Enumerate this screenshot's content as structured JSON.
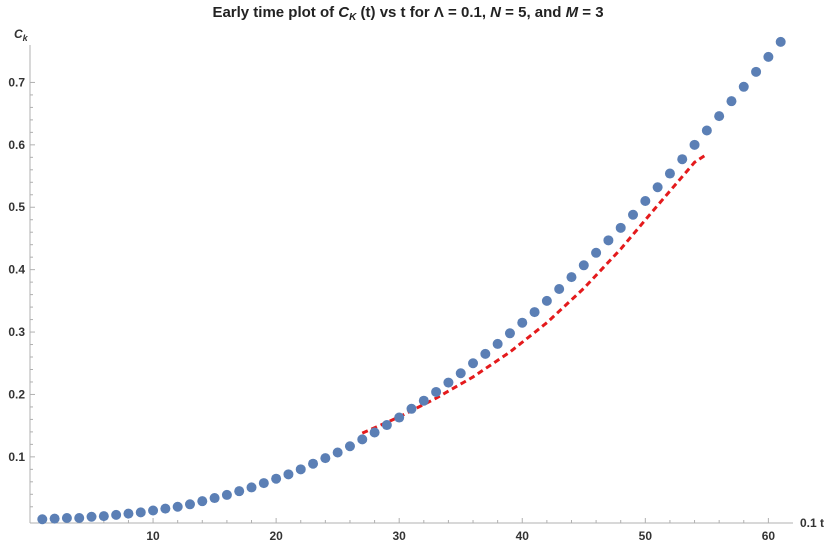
{
  "chart_data": {
    "type": "scatter",
    "title": "Early time plot of C_K (t) vs t for Λ = 0.1,  N = 5,  and M = 3",
    "title_parts": {
      "prefix": "Early time plot of ",
      "c": "C",
      "c_sub": "K",
      "mid": " (t) vs t for Λ = 0.1,  ",
      "n": "N",
      "n_rest": " = 5,  and ",
      "m": "M",
      "m_rest": " = 3"
    },
    "ylabel": "C",
    "ylabel_sub": "k",
    "xlabel": "0.1 t",
    "xlim": [
      0,
      62
    ],
    "ylim": [
      -0.006,
      0.76
    ],
    "x_ticks": [
      10,
      20,
      30,
      40,
      50,
      60
    ],
    "y_ticks": [
      0.1,
      0.2,
      0.3,
      0.4,
      0.5,
      0.6,
      0.7
    ],
    "series": [
      {
        "marker": "circle",
        "color": "#5b7fb5",
        "x": [
          1,
          2,
          3,
          4,
          5,
          6,
          7,
          8,
          9,
          10,
          11,
          12,
          13,
          14,
          15,
          16,
          17,
          18,
          19,
          20,
          21,
          22,
          23,
          24,
          25,
          26,
          27,
          28,
          29,
          30,
          31,
          32,
          33,
          34,
          35,
          36,
          37,
          38,
          39,
          40,
          41,
          42,
          43,
          44,
          45,
          46,
          47,
          48,
          49,
          50,
          51,
          52,
          53,
          54,
          55,
          56,
          57,
          58,
          59,
          60,
          61
        ],
        "y": [
          0.0,
          0.001,
          0.002,
          0.002,
          0.004,
          0.005,
          0.007,
          0.009,
          0.011,
          0.014,
          0.017,
          0.02,
          0.024,
          0.029,
          0.034,
          0.039,
          0.045,
          0.051,
          0.058,
          0.065,
          0.072,
          0.08,
          0.089,
          0.098,
          0.107,
          0.117,
          0.128,
          0.139,
          0.151,
          0.163,
          0.177,
          0.19,
          0.204,
          0.219,
          0.234,
          0.25,
          0.265,
          0.281,
          0.298,
          0.315,
          0.332,
          0.35,
          0.369,
          0.388,
          0.407,
          0.427,
          0.447,
          0.467,
          0.488,
          0.51,
          0.532,
          0.554,
          0.577,
          0.6,
          0.623,
          0.646,
          0.67,
          0.693,
          0.717,
          0.741,
          0.765
        ]
      },
      {
        "style": "dashed",
        "color": "#e41a1c",
        "x": [
          27,
          30,
          33,
          36,
          39,
          42,
          45,
          48,
          51,
          54,
          55
        ],
        "y": [
          0.138,
          0.164,
          0.194,
          0.228,
          0.268,
          0.315,
          0.37,
          0.433,
          0.503,
          0.572,
          0.585
        ]
      }
    ]
  }
}
